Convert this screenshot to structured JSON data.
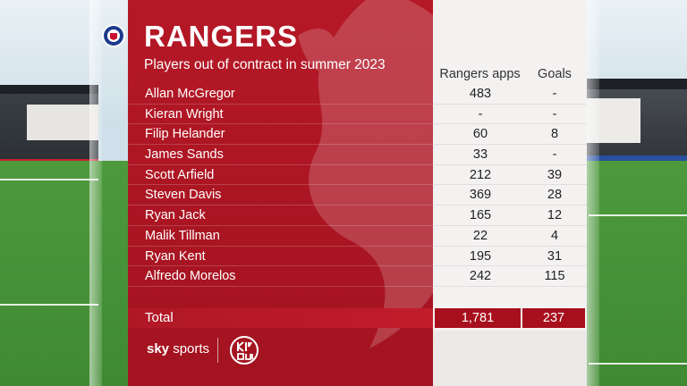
{
  "header": {
    "club_name": "RANGERS",
    "subtitle": "Players out of contract in summer 2023"
  },
  "columns": {
    "apps": "Rangers apps",
    "goals": "Goals"
  },
  "players": [
    {
      "name": "Allan McGregor",
      "apps": "483",
      "goals": "-"
    },
    {
      "name": "Kieran Wright",
      "apps": "-",
      "goals": "-"
    },
    {
      "name": "Filip Helander",
      "apps": "60",
      "goals": "8"
    },
    {
      "name": "James Sands",
      "apps": "33",
      "goals": "-"
    },
    {
      "name": "Scott Arfield",
      "apps": "212",
      "goals": "39"
    },
    {
      "name": "Steven Davis",
      "apps": "369",
      "goals": "28"
    },
    {
      "name": "Ryan Jack",
      "apps": "165",
      "goals": "12"
    },
    {
      "name": "Malik Tillman",
      "apps": "22",
      "goals": "4"
    },
    {
      "name": "Ryan Kent",
      "apps": "195",
      "goals": "31"
    },
    {
      "name": "Alfredo Morelos",
      "apps": "242",
      "goals": "115"
    }
  ],
  "total": {
    "label": "Total",
    "apps": "1,781",
    "goals": "237"
  },
  "footer": {
    "broadcaster_sky": "sky",
    "broadcaster_sports": "sports"
  },
  "colors": {
    "panel_red": "#b51826",
    "panel_light": "#f4f1f1",
    "total_box": "#a8101d"
  },
  "icons": {
    "crest": "rangers-crest-icon",
    "kickout_logo": "kick-out-logo-icon",
    "lion": "lion-watermark-icon"
  }
}
